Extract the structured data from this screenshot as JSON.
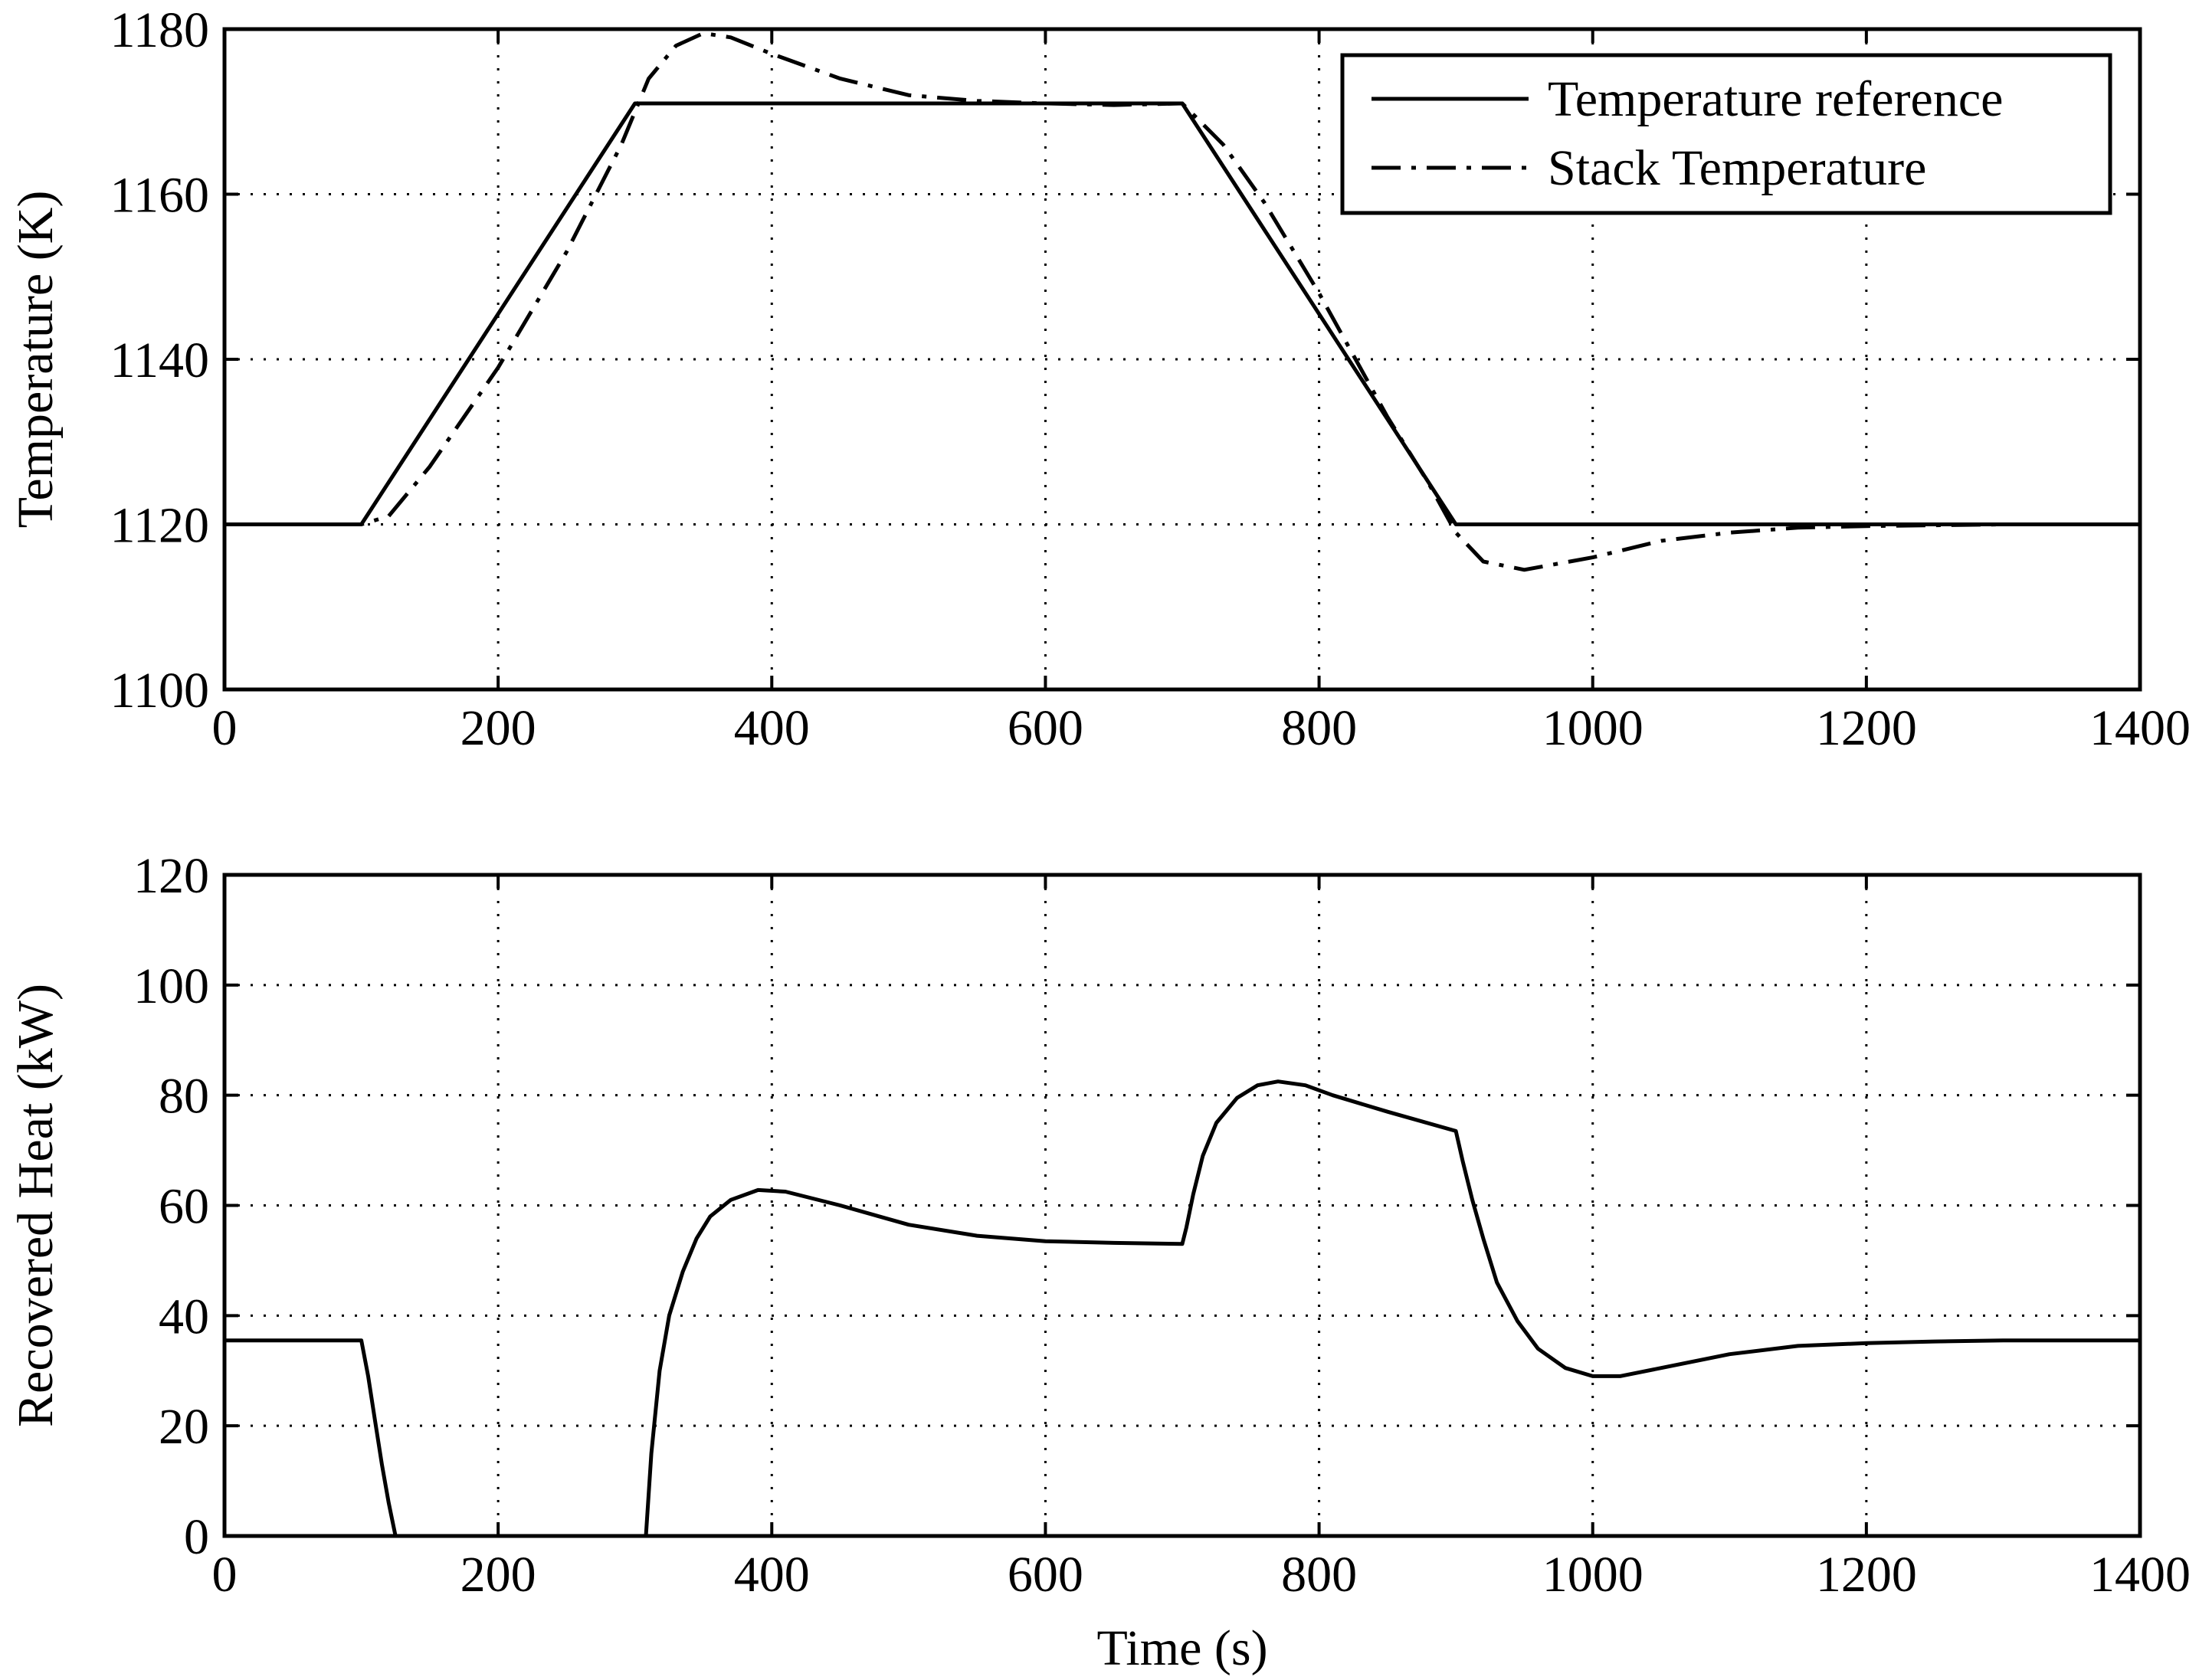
{
  "chart_data": [
    {
      "type": "line",
      "xlabel": "",
      "ylabel": "Temperature (K)",
      "xlim": [
        0,
        1400
      ],
      "ylim": [
        1100,
        1180
      ],
      "xticks": [
        "0",
        "200",
        "400",
        "600",
        "800",
        "1000",
        "1200",
        "1400"
      ],
      "yticks": [
        "1100",
        "1120",
        "1140",
        "1160",
        "1180"
      ],
      "grid": true,
      "legend_position": "top-right",
      "series": [
        {
          "name": "Temperature reference",
          "style": "solid",
          "x": [
            0,
            100,
            300,
            700,
            900,
            1400
          ],
          "y": [
            1120,
            1120,
            1171,
            1171,
            1120,
            1120
          ]
        },
        {
          "name": "Stack Temperature",
          "style": "dashdot",
          "x": [
            0,
            100,
            120,
            150,
            200,
            250,
            290,
            310,
            330,
            350,
            370,
            400,
            450,
            500,
            550,
            600,
            650,
            700,
            730,
            760,
            800,
            850,
            880,
            900,
            920,
            950,
            1000,
            1050,
            1100,
            1150,
            1200,
            1300,
            1400
          ],
          "y": [
            1120,
            1120,
            1121,
            1127,
            1139,
            1153,
            1166,
            1174,
            1178,
            1179.5,
            1179,
            1177,
            1174,
            1172,
            1171.3,
            1171,
            1170.8,
            1171,
            1166,
            1159,
            1148,
            1133,
            1125,
            1119,
            1115.5,
            1114.5,
            1116,
            1118,
            1119,
            1119.6,
            1119.8,
            1120,
            1120
          ]
        }
      ]
    },
    {
      "type": "line",
      "xlabel": "Time (s)",
      "ylabel": "Recovered Heat (kW)",
      "xlim": [
        0,
        1400
      ],
      "ylim": [
        0,
        120
      ],
      "xticks": [
        "0",
        "200",
        "400",
        "600",
        "800",
        "1000",
        "1200",
        "1400"
      ],
      "yticks": [
        "0",
        "20",
        "40",
        "60",
        "80",
        "100",
        "120"
      ],
      "grid": true,
      "series": [
        {
          "style": "solid",
          "x": [
            0,
            100,
            105,
            110,
            115,
            120,
            125,
            300,
            308,
            312,
            318,
            325,
            335,
            345,
            355,
            370,
            390,
            410,
            450,
            500,
            550,
            600,
            650,
            700,
            703,
            708,
            715,
            725,
            740,
            755,
            770,
            790,
            810,
            850,
            900,
            905,
            912,
            920,
            930,
            945,
            960,
            980,
            1000,
            1020,
            1050,
            1100,
            1150,
            1200,
            1250,
            1300,
            1400
          ],
          "y": [
            35.5,
            35.5,
            29,
            21,
            13,
            6,
            0,
            0,
            0,
            15,
            30,
            40,
            48,
            54,
            58,
            61,
            62.8,
            62.5,
            60,
            56.5,
            54.5,
            53.5,
            53.2,
            53,
            56,
            62,
            69,
            75,
            79.5,
            81.8,
            82.5,
            81.8,
            80,
            77,
            73.5,
            68,
            61,
            54,
            46,
            39,
            34,
            30.5,
            29,
            29,
            30.5,
            33,
            34.5,
            35,
            35.3,
            35.5,
            35.5
          ]
        }
      ]
    }
  ],
  "legend": {
    "entries": [
      "Temperature reference",
      "Stack Temperature"
    ]
  }
}
